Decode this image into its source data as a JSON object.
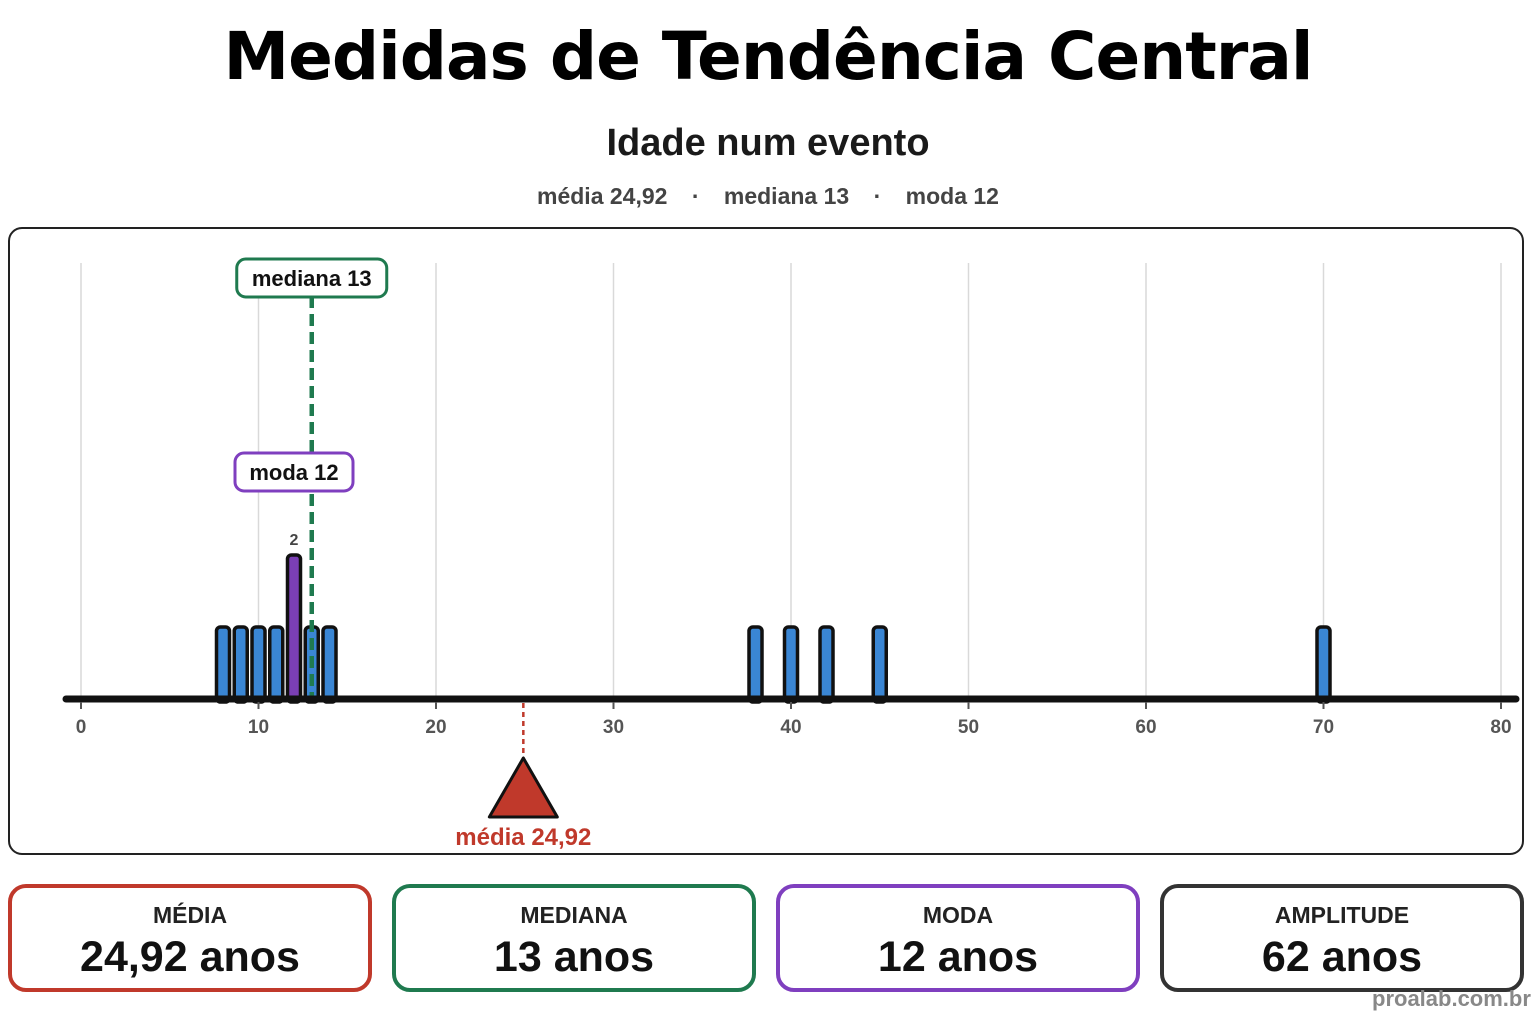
{
  "header": {
    "title": "Medidas de Tendência Central"
  },
  "chart_data": {
    "type": "bar",
    "title": "Idade num evento",
    "subtitle_items": [
      "média 24,92",
      "mediana 13",
      "moda 12"
    ],
    "subtitle_separator": "·",
    "x": [
      8,
      9,
      10,
      11,
      12,
      13,
      14,
      38,
      40,
      42,
      45,
      70
    ],
    "values": [
      1,
      1,
      1,
      1,
      2,
      1,
      1,
      1,
      1,
      1,
      1,
      1
    ],
    "xlim": [
      0,
      80
    ],
    "xticks": [
      0,
      10,
      20,
      30,
      40,
      50,
      60,
      70,
      80
    ],
    "grid": true,
    "count_labels": [
      {
        "x": 12,
        "text": "2"
      }
    ],
    "markers": {
      "mean": {
        "value": 24.92,
        "label": "média 24,92"
      },
      "median": {
        "value": 13,
        "label": "mediana 13"
      },
      "mode": {
        "value": 12,
        "label": "moda 12"
      }
    },
    "colors": {
      "bar": "#3a86d4",
      "mode_bar": "#7b3fb5",
      "mean": "#c0392b",
      "median": "#1f7a4f",
      "mode": "#7f3fbf",
      "axis": "#111111",
      "grid": "#d9d9d9"
    }
  },
  "cards": [
    {
      "label": "MÉDIA",
      "value": "24,92 anos",
      "color": "#c0392b"
    },
    {
      "label": "MEDIANA",
      "value": "13 anos",
      "color": "#1f7a4f"
    },
    {
      "label": "MODA",
      "value": "12 anos",
      "color": "#7f3fbf"
    },
    {
      "label": "AMPLITUDE",
      "value": "62 anos",
      "color": "#333333"
    }
  ],
  "watermark": "proalab.com.br"
}
